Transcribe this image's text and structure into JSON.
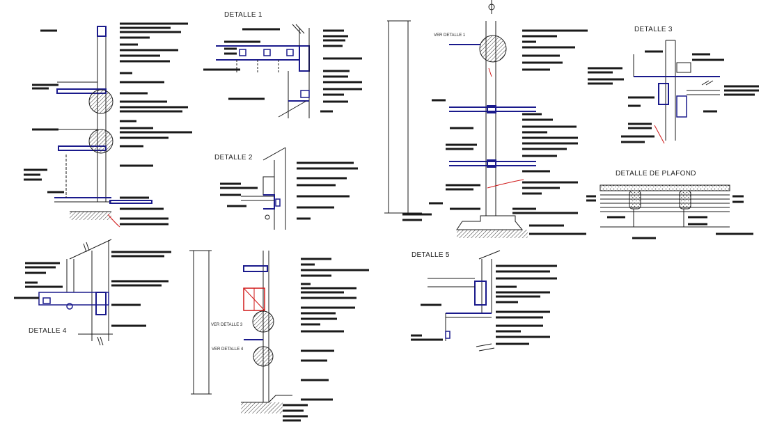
{
  "drawing": {
    "detail_titles": {
      "d1": "DETALLE 1",
      "d2": "DETALLE 2",
      "d3": "DETALLE 3",
      "d4": "DETALLE 4",
      "d5": "DETALLE 5",
      "plafond": "DETALLE DE PLAFOND"
    },
    "references": {
      "ver_d1": "VER DETALLE 1",
      "ver_d3": "VER DETALLE 3",
      "ver_d4": "VER DETALLE 4"
    },
    "colors": {
      "line": "#1a1a1a",
      "structure": "#1a1a8c",
      "accent": "#d01818",
      "text": "#222222"
    }
  }
}
